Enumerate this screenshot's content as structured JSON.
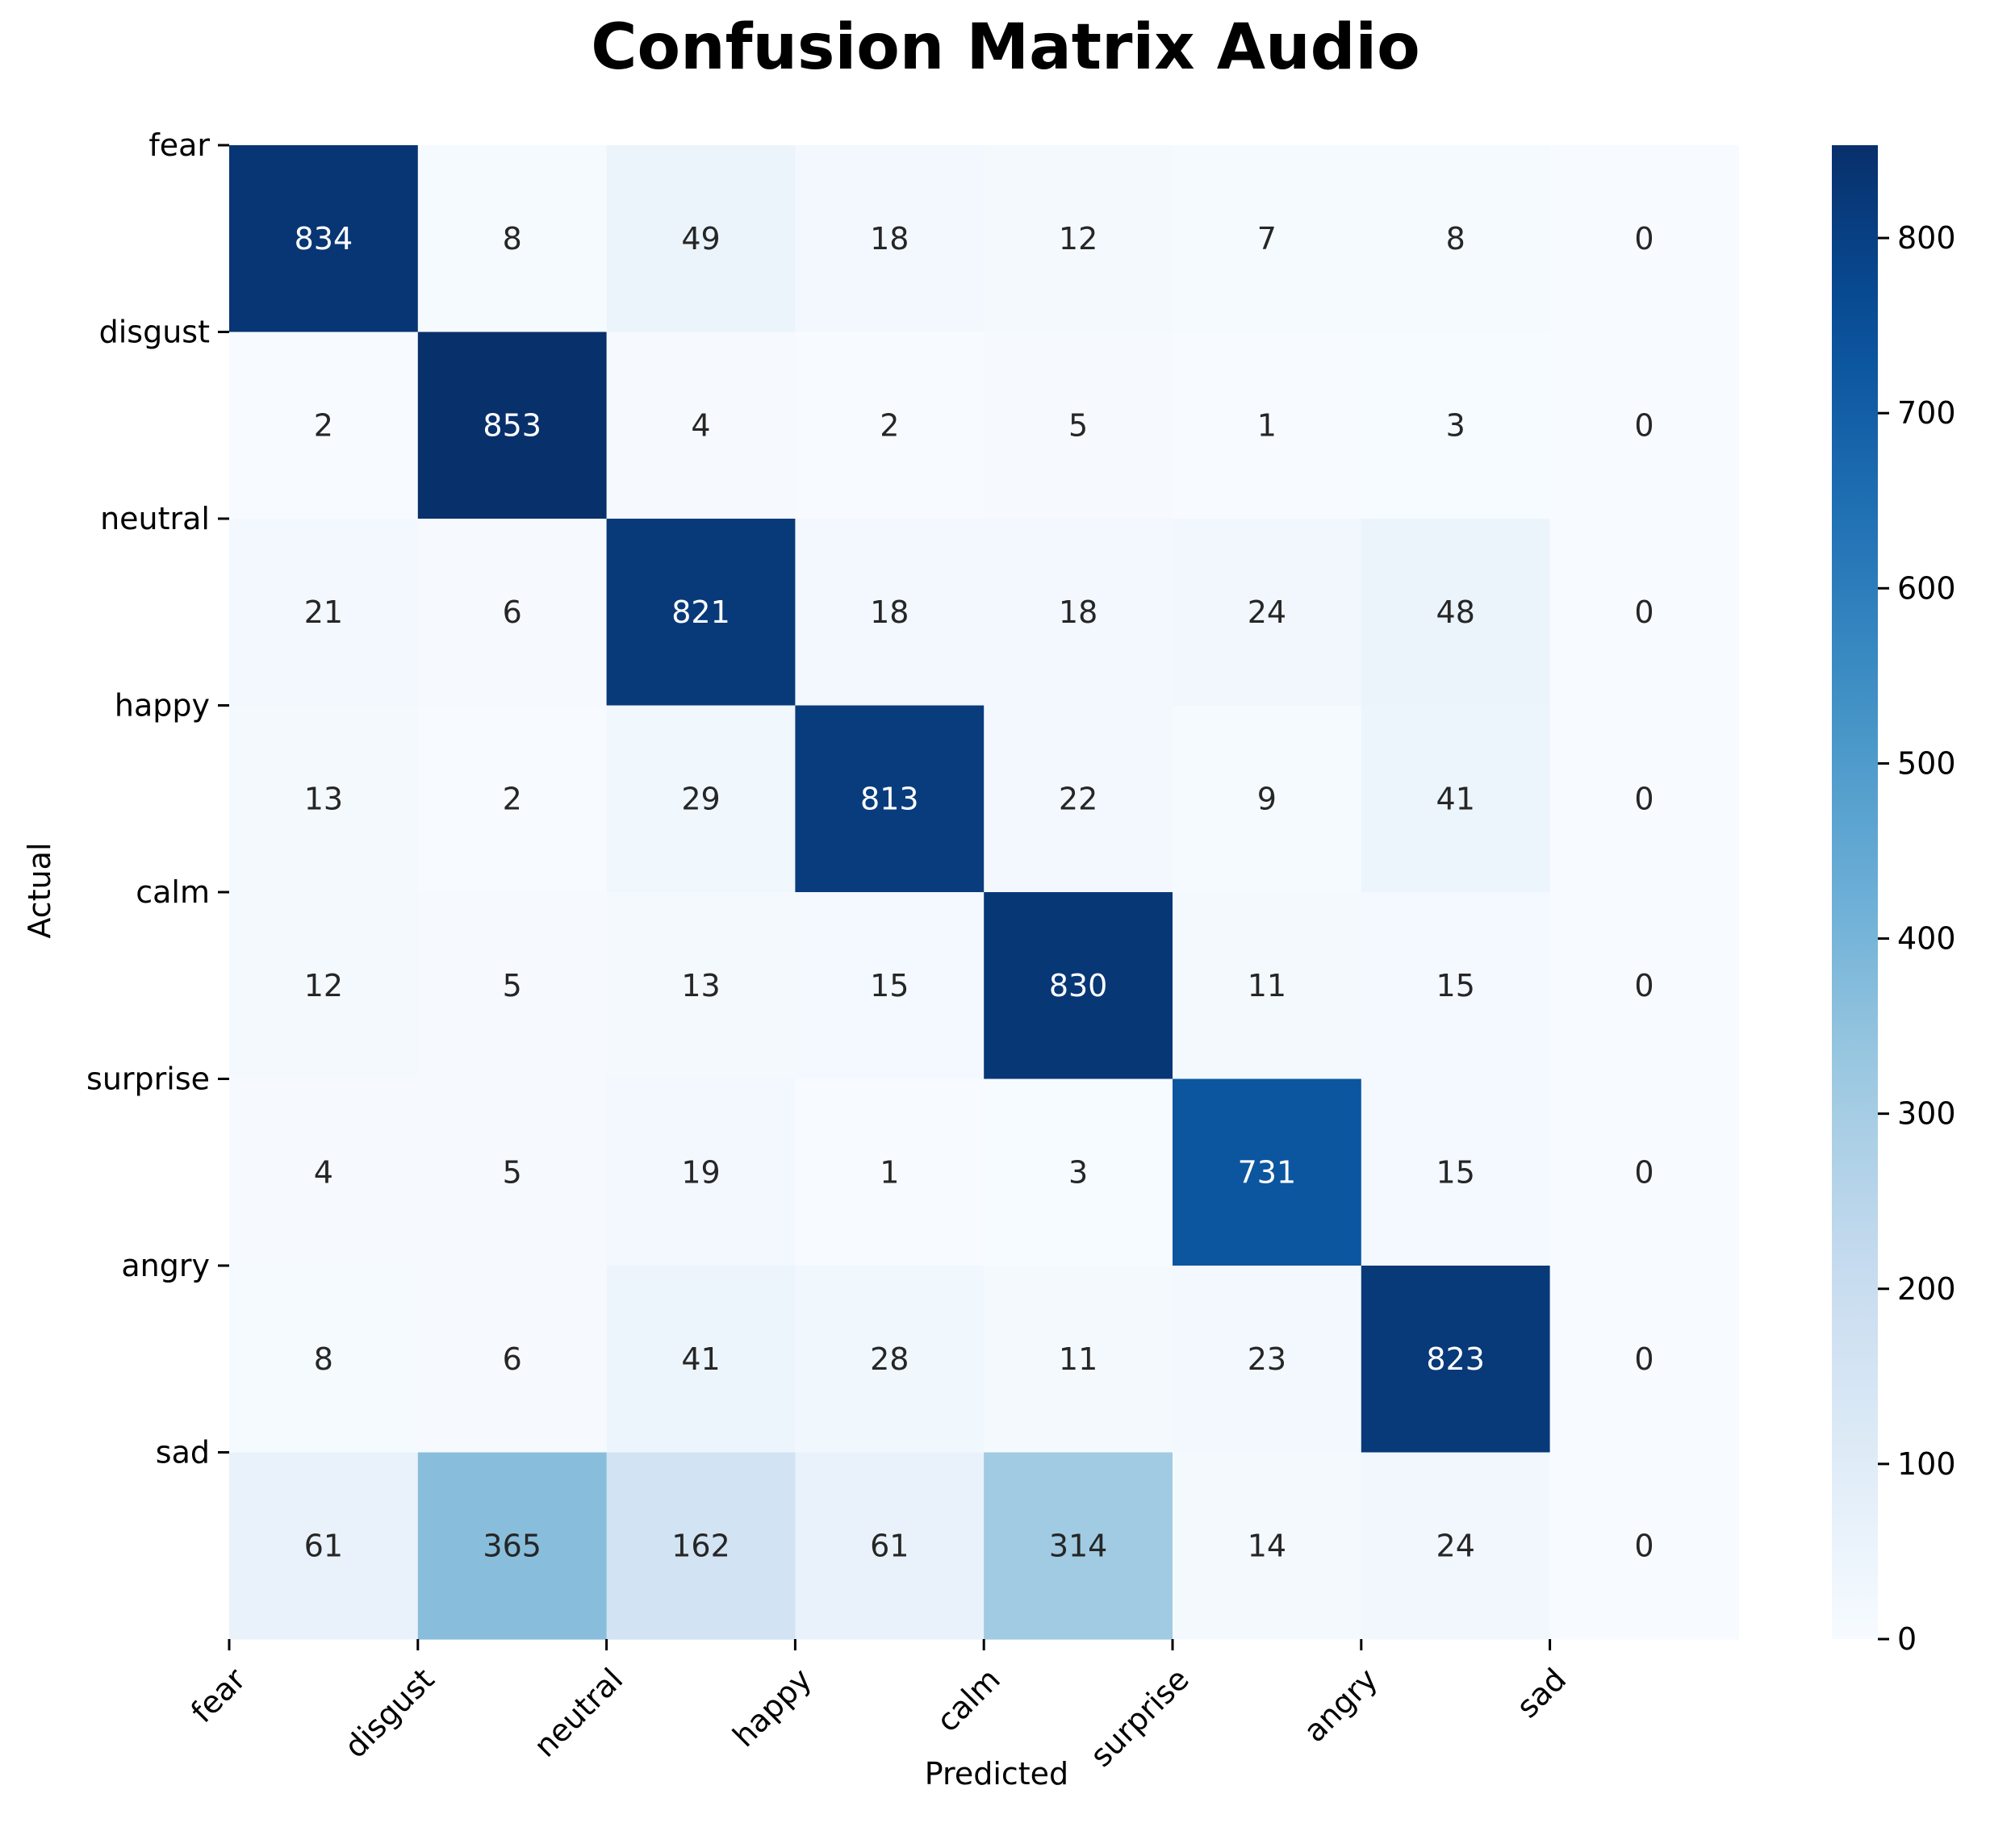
{
  "chart_data": {
    "type": "heatmap",
    "title": "Confusion Matrix Audio",
    "xlabel": "Predicted",
    "ylabel": "Actual",
    "x_tick_labels": [
      "fear",
      "disgust",
      "neutral",
      "happy",
      "calm",
      "surprise",
      "angry",
      "sad"
    ],
    "y_tick_labels": [
      "fear",
      "disgust",
      "neutral",
      "happy",
      "calm",
      "surprise",
      "angry",
      "sad"
    ],
    "values": [
      [
        834,
        8,
        49,
        18,
        12,
        7,
        8,
        0
      ],
      [
        2,
        853,
        4,
        2,
        5,
        1,
        3,
        0
      ],
      [
        21,
        6,
        821,
        18,
        18,
        24,
        48,
        0
      ],
      [
        13,
        2,
        29,
        813,
        22,
        9,
        41,
        0
      ],
      [
        12,
        5,
        13,
        15,
        830,
        11,
        15,
        0
      ],
      [
        4,
        5,
        19,
        1,
        3,
        731,
        15,
        0
      ],
      [
        8,
        6,
        41,
        28,
        11,
        23,
        823,
        0
      ],
      [
        61,
        365,
        162,
        61,
        314,
        14,
        24,
        0
      ]
    ],
    "colormap": "Blues",
    "color_min": 0,
    "color_max": 853,
    "colorbar_ticks": [
      0,
      100,
      200,
      300,
      400,
      500,
      600,
      700,
      800
    ],
    "colorbar_tick_labels": [
      "0",
      "100",
      "200",
      "300",
      "400",
      "500",
      "600",
      "700",
      "800"
    ],
    "colors": {
      "low": "#f7fbff",
      "high": "#08306b",
      "dark_text": "#262626",
      "light_text": "#ffffff"
    }
  }
}
